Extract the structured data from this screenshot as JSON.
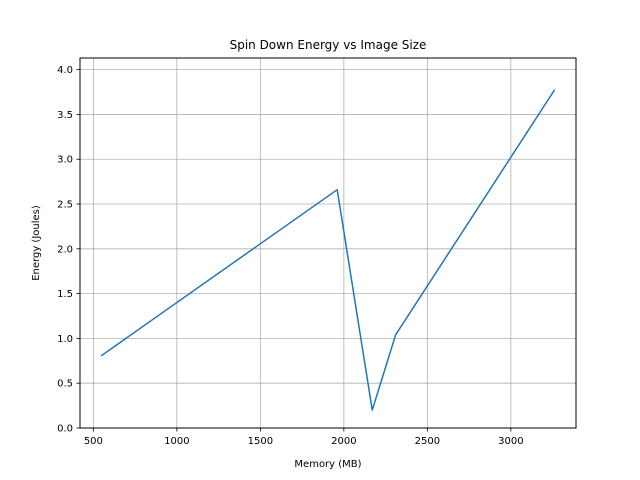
{
  "chart_data": {
    "type": "line",
    "title": "Spin Down Energy vs Image Size",
    "xlabel": "Memory (MB)",
    "ylabel": "Energy (Joules)",
    "xlim": [
      420,
      3390
    ],
    "ylim": [
      0.0,
      4.13
    ],
    "xticks": [
      500,
      1000,
      1500,
      2000,
      2500,
      3000
    ],
    "yticks": [
      0.0,
      0.5,
      1.0,
      1.5,
      2.0,
      2.5,
      3.0,
      3.5,
      4.0
    ],
    "xtick_labels": [
      "500",
      "1000",
      "1500",
      "2000",
      "2500",
      "3000"
    ],
    "ytick_labels": [
      "0.0",
      "0.5",
      "1.0",
      "1.5",
      "2.0",
      "2.5",
      "3.0",
      "3.5",
      "4.0"
    ],
    "grid": true,
    "series": [
      {
        "color": "#1f77b4",
        "x": [
          550,
          1960,
          2170,
          2310,
          3260
        ],
        "y": [
          0.81,
          2.66,
          0.2,
          1.04,
          3.77
        ]
      }
    ]
  }
}
